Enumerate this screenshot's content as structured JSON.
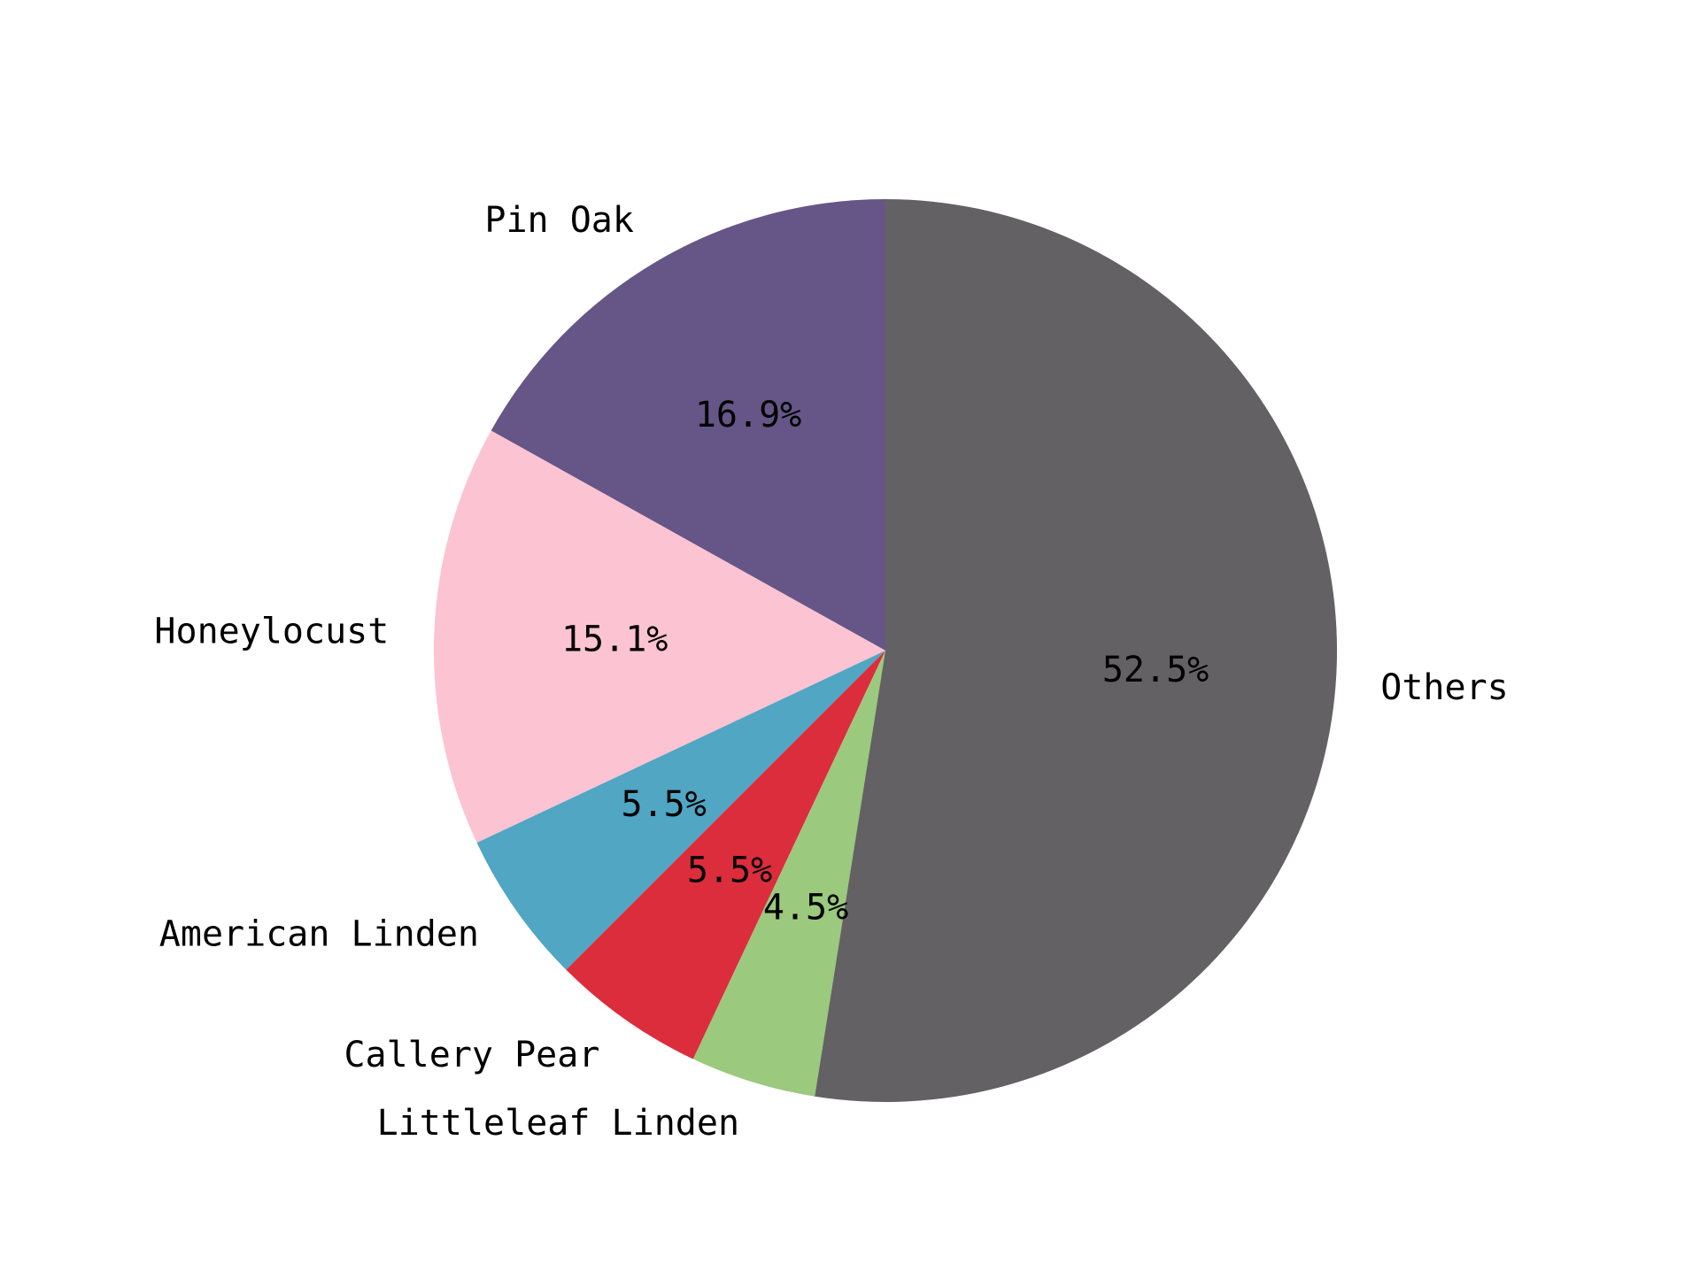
{
  "chart_data": {
    "type": "pie",
    "title": "",
    "start_angle_deg": 90,
    "direction": "counterclockwise",
    "slices": [
      {
        "label": "Pin Oak",
        "value": 16.9,
        "pct_label": "16.9%",
        "color": "#665687"
      },
      {
        "label": "Honeylocust",
        "value": 15.1,
        "pct_label": "15.1%",
        "color": "#fcc3d2"
      },
      {
        "label": "American Linden",
        "value": 5.5,
        "pct_label": "5.5%",
        "color": "#50a6c3"
      },
      {
        "label": "Callery Pear",
        "value": 5.5,
        "pct_label": "5.5%",
        "color": "#dc2d3d"
      },
      {
        "label": "Littleleaf Linden",
        "value": 4.5,
        "pct_label": "4.5%",
        "color": "#9bc97d"
      },
      {
        "label": "Others",
        "value": 52.5,
        "pct_label": "52.5%",
        "color": "#636164"
      }
    ]
  }
}
